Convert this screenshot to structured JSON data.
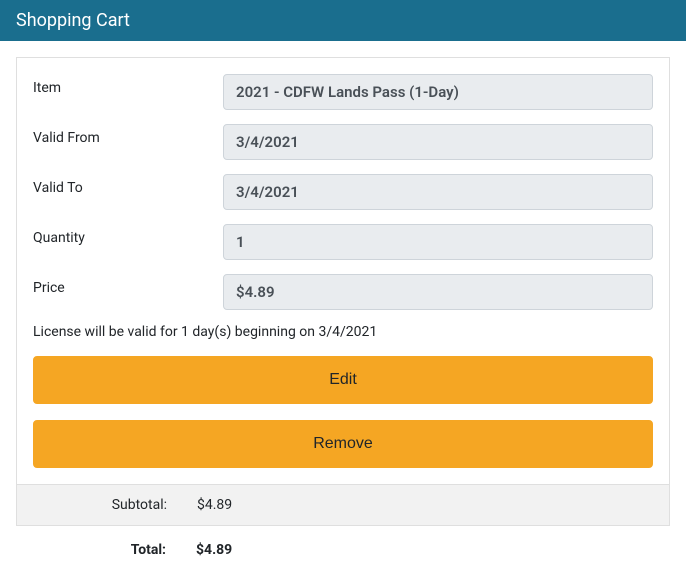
{
  "header": {
    "title": "Shopping Cart"
  },
  "colors": {
    "header_bg": "#1a6e8e",
    "header_text": "#ffffff",
    "button_bg": "#f5a623",
    "field_bg": "#e9ecef",
    "field_border": "#ced4da",
    "card_border": "#dfdfdf",
    "subtotal_bg": "#f2f2f2"
  },
  "item": {
    "labels": {
      "item": "Item",
      "valid_from": "Valid From",
      "valid_to": "Valid To",
      "quantity": "Quantity",
      "price": "Price"
    },
    "values": {
      "item": "2021 - CDFW Lands Pass (1-Day)",
      "valid_from": "3/4/2021",
      "valid_to": "3/4/2021",
      "quantity": "1",
      "price": "$4.89"
    },
    "note": "License will be valid for 1 day(s) beginning on 3/4/2021"
  },
  "buttons": {
    "edit": "Edit",
    "remove": "Remove"
  },
  "totals": {
    "subtotal_label": "Subtotal:",
    "subtotal_value": "$4.89",
    "total_label": "Total:",
    "total_value": "$4.89"
  }
}
